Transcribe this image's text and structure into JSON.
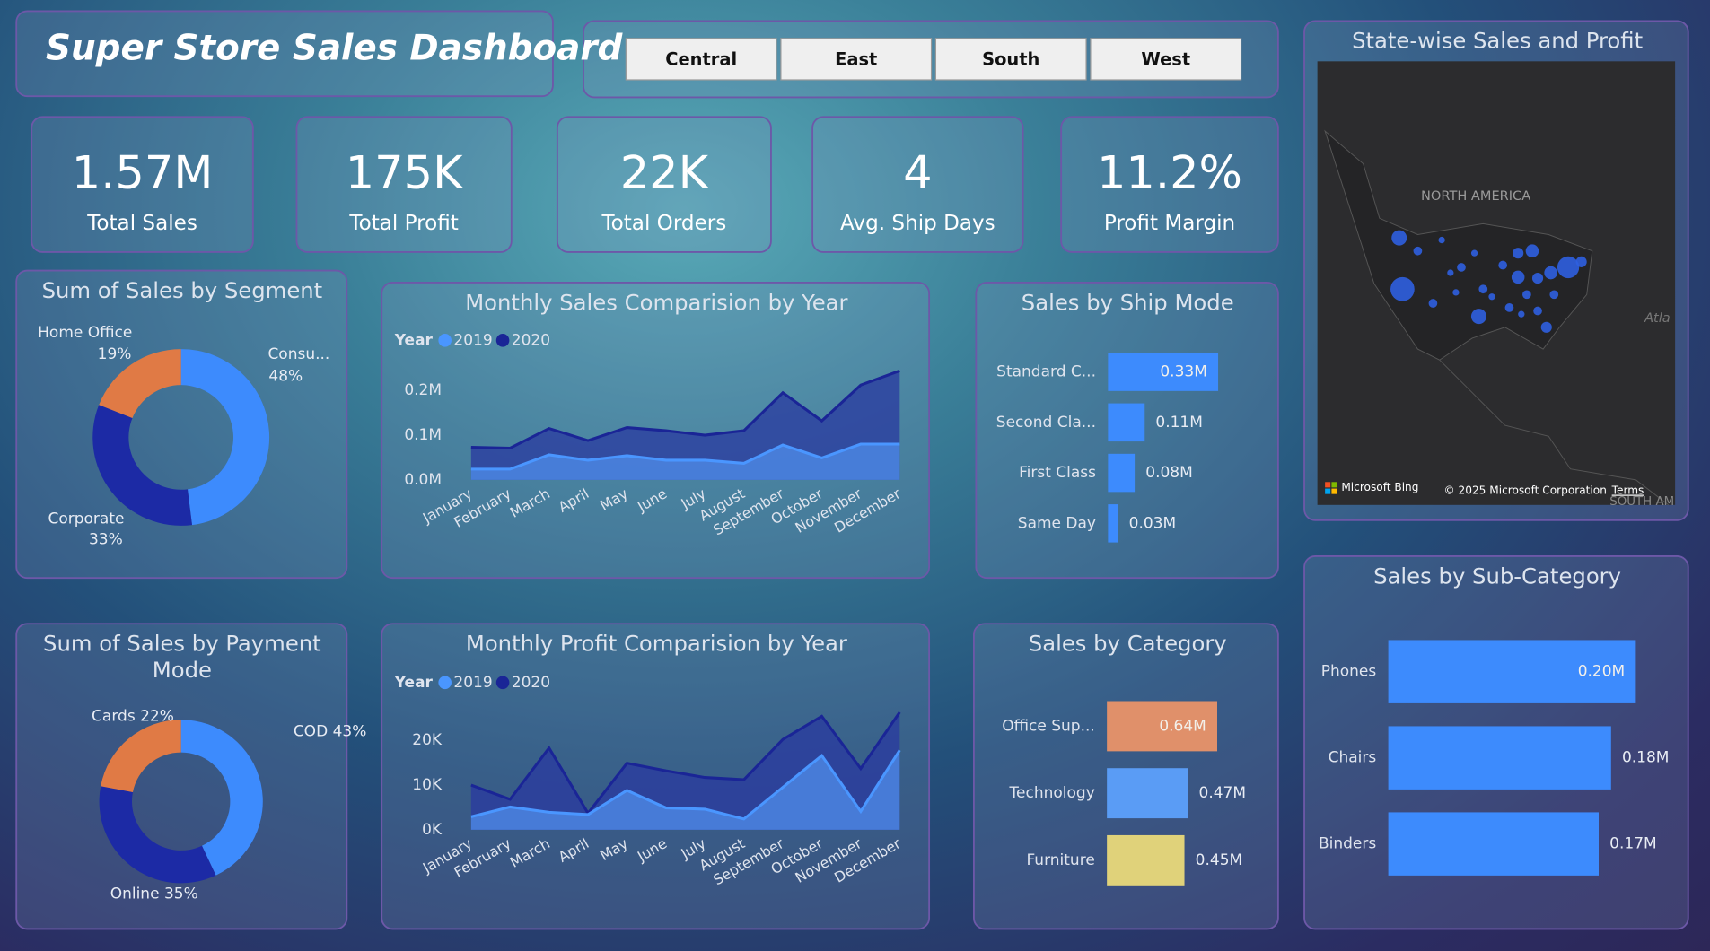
{
  "header": {
    "title": "Super Store Sales Dashboard"
  },
  "slicers": [
    "Central",
    "East",
    "South",
    "West"
  ],
  "kpis": [
    {
      "value": "1.57M",
      "label": "Total Sales"
    },
    {
      "value": "175K",
      "label": "Total Profit"
    },
    {
      "value": "22K",
      "label": "Total Orders"
    },
    {
      "value": "4",
      "label": "Avg. Ship Days"
    },
    {
      "value": "11.2%",
      "label": "Profit Margin"
    }
  ],
  "map": {
    "title": "State-wise Sales and Profit",
    "labels": [
      "NORTH AMERICA",
      "Atla",
      "SOUTH AM"
    ],
    "attribution": [
      "Microsoft Bing",
      "© 2025 Microsoft Corporation",
      "Terms"
    ]
  },
  "chart_data": [
    {
      "type": "donut",
      "title": "Sum of Sales by Segment",
      "categories": [
        "Consu...",
        "Corporate",
        "Home Office"
      ],
      "values": [
        48,
        33,
        19
      ],
      "value_labels": [
        "48%",
        "33%",
        "19%"
      ],
      "colors": [
        "#3d8bfd",
        "#1c2aa5",
        "#e07a45"
      ]
    },
    {
      "type": "area",
      "title": "Monthly Sales Comparision by Year",
      "legend_title": "Year",
      "categories": [
        "January",
        "February",
        "March",
        "April",
        "May",
        "June",
        "July",
        "August",
        "September",
        "October",
        "November",
        "December"
      ],
      "series": [
        {
          "name": "2019",
          "color": "#4a96ff",
          "values": [
            0.024,
            0.024,
            0.056,
            0.044,
            0.054,
            0.044,
            0.044,
            0.037,
            0.078,
            0.049,
            0.08,
            0.08
          ]
        },
        {
          "name": "2020",
          "color": "#1a2596",
          "values": [
            0.073,
            0.071,
            0.115,
            0.088,
            0.117,
            0.11,
            0.1,
            0.11,
            0.195,
            0.132,
            0.212,
            0.244
          ]
        }
      ],
      "ylim": [
        0,
        0.25
      ],
      "yticks": [
        {
          "value": 0,
          "label": "0.0M"
        },
        {
          "value": 0.1,
          "label": "0.1M"
        },
        {
          "value": 0.2,
          "label": "0.2M"
        }
      ]
    },
    {
      "type": "hbar",
      "title": "Sales by Ship Mode",
      "categories": [
        "Standard C...",
        "Second Cla...",
        "First Class",
        "Same Day"
      ],
      "values": [
        0.33,
        0.11,
        0.08,
        0.03
      ],
      "value_labels": [
        "0.33M",
        "0.11M",
        "0.08M",
        "0.03M"
      ],
      "color": "#3d8bfd"
    },
    {
      "type": "donut",
      "title": "Sum of Sales by Payment Mode",
      "categories": [
        "COD",
        "Online",
        "Cards"
      ],
      "values": [
        43,
        35,
        22
      ],
      "value_labels": [
        "43%",
        "35%",
        "22%"
      ],
      "colors": [
        "#3d8bfd",
        "#1c2aa5",
        "#e07a45"
      ]
    },
    {
      "type": "area",
      "title": "Monthly Profit Comparision by Year",
      "legend_title": "Year",
      "categories": [
        "January",
        "February",
        "March",
        "April",
        "May",
        "June",
        "July",
        "August",
        "September",
        "October",
        "November",
        "December"
      ],
      "series": [
        {
          "name": "2019",
          "color": "#4a96ff",
          "values": [
            2.9,
            5.1,
            3.9,
            3.4,
            8.8,
            4.9,
            4.6,
            2.4,
            9.5,
            16.6,
            4.1,
            17.8
          ]
        },
        {
          "name": "2020",
          "color": "#1a2596",
          "values": [
            10,
            6.8,
            18.3,
            3.7,
            14.9,
            13.2,
            11.7,
            11.2,
            20.2,
            25.4,
            13.7,
            26.3
          ]
        }
      ],
      "ylim": [
        0,
        27.5
      ],
      "yticks": [
        {
          "value": 0,
          "label": "0K"
        },
        {
          "value": 10,
          "label": "10K"
        },
        {
          "value": 20,
          "label": "20K"
        }
      ]
    },
    {
      "type": "hbar",
      "title": "Sales by Category",
      "categories": [
        "Office Sup...",
        "Technology",
        "Furniture"
      ],
      "values": [
        0.64,
        0.47,
        0.45
      ],
      "value_labels": [
        "0.64M",
        "0.47M",
        "0.45M"
      ],
      "colors": [
        "#e0906a",
        "#5a9cf5",
        "#e0d27a"
      ]
    },
    {
      "type": "hbar",
      "title": "Sales by Sub-Category",
      "categories": [
        "Phones",
        "Chairs",
        "Binders"
      ],
      "values": [
        0.2,
        0.18,
        0.17
      ],
      "value_labels": [
        "0.20M",
        "0.18M",
        "0.17M"
      ],
      "color": "#3d8bfd"
    }
  ]
}
